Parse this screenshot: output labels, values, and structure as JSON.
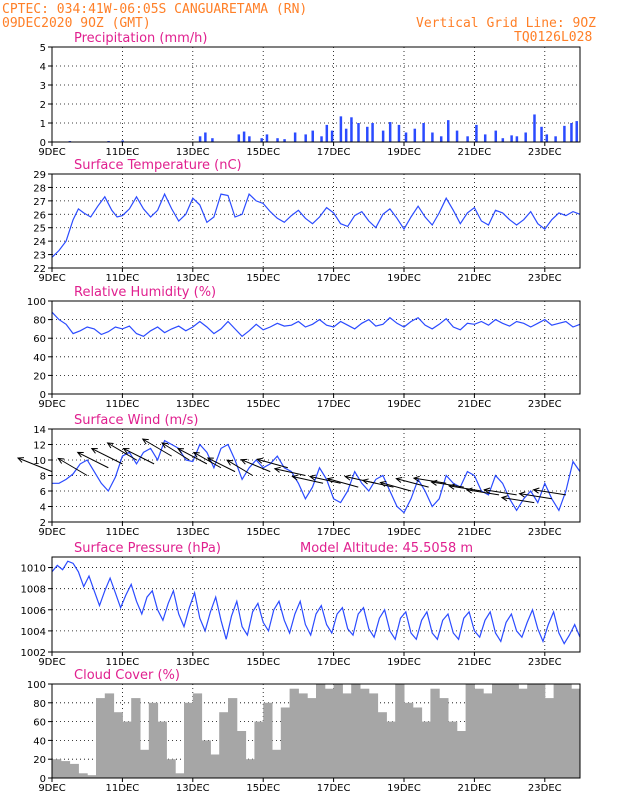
{
  "header": {
    "line1_left": "CPTEC:   034:41W-06:05S   CANGUARETAMA (RN)",
    "line2_left": "09DEC2020 9OZ (GMT)",
    "line2_right": "Vertical Grid Line: 9OZ",
    "line3_right": "TQ0126L028"
  },
  "x_axis": {
    "ticks": [
      "9DEC",
      "11DEC",
      "13DEC",
      "15DEC",
      "17DEC",
      "19DEC",
      "21DEC",
      "23DEC"
    ],
    "tick_days": [
      0,
      2,
      4,
      6,
      8,
      10,
      12,
      14
    ],
    "range_days": [
      0,
      15
    ]
  },
  "colors": {
    "series": "#2b4bff",
    "bars": "#2b4bff",
    "cloud": "#a6a6a6",
    "header": "#ff7f27",
    "title": "#e0208f"
  },
  "chart_data": [
    {
      "type": "bar",
      "title": "Precipitation (mm/h)",
      "ylim": [
        0,
        5
      ],
      "yticks": [
        0,
        1,
        2,
        3,
        4,
        5
      ],
      "x": [
        0.5,
        1.6,
        2.0,
        4.2,
        4.35,
        4.55,
        5.3,
        5.45,
        5.6,
        5.95,
        6.1,
        6.4,
        6.6,
        6.9,
        7.2,
        7.4,
        7.65,
        7.8,
        7.95,
        8.2,
        8.35,
        8.5,
        8.7,
        8.95,
        9.1,
        9.4,
        9.6,
        9.85,
        10.05,
        10.3,
        10.55,
        10.8,
        11.05,
        11.25,
        11.5,
        11.8,
        12.05,
        12.3,
        12.6,
        12.8,
        13.05,
        13.2,
        13.45,
        13.7,
        13.9,
        14.05,
        14.3,
        14.55,
        14.75,
        14.9
      ],
      "values": [
        0.05,
        0.05,
        0.08,
        0.3,
        0.5,
        0.2,
        0.4,
        0.55,
        0.3,
        0.2,
        0.4,
        0.2,
        0.15,
        0.5,
        0.4,
        0.6,
        0.3,
        0.9,
        0.6,
        1.35,
        0.7,
        1.3,
        1.0,
        0.8,
        1.0,
        0.6,
        1.05,
        0.9,
        0.5,
        0.7,
        1.0,
        0.5,
        0.3,
        1.15,
        0.6,
        0.3,
        0.9,
        0.4,
        0.6,
        0.2,
        0.35,
        0.3,
        0.5,
        1.45,
        0.8,
        0.4,
        0.3,
        0.85,
        1.0,
        1.1
      ]
    },
    {
      "type": "line",
      "title": "Surface Temperature (nC)",
      "ylim": [
        22,
        29
      ],
      "yticks": [
        22,
        23,
        24,
        25,
        26,
        27,
        28,
        29
      ],
      "x": [
        0.0,
        0.2,
        0.4,
        0.6,
        0.75,
        0.9,
        1.1,
        1.3,
        1.5,
        1.7,
        1.85,
        2.0,
        2.2,
        2.4,
        2.6,
        2.8,
        3.0,
        3.2,
        3.4,
        3.6,
        3.8,
        4.0,
        4.2,
        4.4,
        4.6,
        4.8,
        5.0,
        5.2,
        5.4,
        5.6,
        5.8,
        6.0,
        6.2,
        6.4,
        6.6,
        6.8,
        7.0,
        7.2,
        7.4,
        7.6,
        7.8,
        8.0,
        8.2,
        8.4,
        8.6,
        8.8,
        9.0,
        9.2,
        9.4,
        9.6,
        9.8,
        10.0,
        10.2,
        10.4,
        10.6,
        10.8,
        11.0,
        11.2,
        11.4,
        11.6,
        11.8,
        12.0,
        12.2,
        12.4,
        12.6,
        12.8,
        13.0,
        13.2,
        13.4,
        13.6,
        13.8,
        14.0,
        14.2,
        14.4,
        14.6,
        14.8,
        15.0
      ],
      "values": [
        22.8,
        23.3,
        24.0,
        25.6,
        26.4,
        26.1,
        25.8,
        26.6,
        27.3,
        26.3,
        25.8,
        25.9,
        26.4,
        27.3,
        26.4,
        25.8,
        26.3,
        27.5,
        26.4,
        25.5,
        26.0,
        27.2,
        26.7,
        25.4,
        25.8,
        27.5,
        27.4,
        25.8,
        26.0,
        27.5,
        27.0,
        26.8,
        26.2,
        25.7,
        25.4,
        25.9,
        26.3,
        25.7,
        25.3,
        25.8,
        26.5,
        26.1,
        25.3,
        25.1,
        25.9,
        26.2,
        25.5,
        25.0,
        26.0,
        26.4,
        25.7,
        24.9,
        25.8,
        26.6,
        25.8,
        25.2,
        26.1,
        27.2,
        26.3,
        25.3,
        26.1,
        26.5,
        25.5,
        25.2,
        26.3,
        26.1,
        25.6,
        25.2,
        25.6,
        26.2,
        25.3,
        24.9,
        25.6,
        26.1,
        25.9,
        26.2,
        26.0
      ]
    },
    {
      "type": "line",
      "title": "Relative Humidity (%)",
      "ylim": [
        0,
        100
      ],
      "yticks": [
        0,
        20,
        40,
        60,
        80,
        100
      ],
      "x": [
        0.0,
        0.2,
        0.4,
        0.6,
        0.8,
        1.0,
        1.2,
        1.4,
        1.6,
        1.8,
        2.0,
        2.2,
        2.4,
        2.6,
        2.8,
        3.0,
        3.2,
        3.4,
        3.6,
        3.8,
        4.0,
        4.2,
        4.4,
        4.6,
        4.8,
        5.0,
        5.2,
        5.4,
        5.6,
        5.8,
        6.0,
        6.2,
        6.4,
        6.6,
        6.8,
        7.0,
        7.2,
        7.4,
        7.6,
        7.8,
        8.0,
        8.2,
        8.4,
        8.6,
        8.8,
        9.0,
        9.2,
        9.4,
        9.6,
        9.8,
        10.0,
        10.2,
        10.4,
        10.6,
        10.8,
        11.0,
        11.2,
        11.4,
        11.6,
        11.8,
        12.0,
        12.2,
        12.4,
        12.6,
        12.8,
        13.0,
        13.2,
        13.4,
        13.6,
        13.8,
        14.0,
        14.2,
        14.4,
        14.6,
        14.8,
        15.0
      ],
      "values": [
        88,
        80,
        75,
        65,
        68,
        72,
        70,
        64,
        67,
        72,
        70,
        73,
        65,
        62,
        68,
        72,
        66,
        70,
        73,
        68,
        72,
        78,
        72,
        65,
        70,
        78,
        70,
        62,
        68,
        75,
        69,
        72,
        76,
        73,
        74,
        78,
        72,
        75,
        80,
        74,
        72,
        78,
        74,
        70,
        76,
        80,
        73,
        75,
        82,
        76,
        72,
        78,
        82,
        74,
        70,
        75,
        81,
        72,
        69,
        76,
        75,
        78,
        74,
        80,
        76,
        73,
        78,
        76,
        72,
        76,
        80,
        74,
        76,
        78,
        72,
        75
      ]
    },
    {
      "type": "line",
      "title": "Surface Wind (m/s)",
      "ylim": [
        2,
        14
      ],
      "yticks": [
        2,
        4,
        6,
        8,
        10,
        12,
        14
      ],
      "x": [
        0.0,
        0.2,
        0.4,
        0.6,
        0.8,
        1.0,
        1.2,
        1.4,
        1.6,
        1.8,
        2.0,
        2.2,
        2.4,
        2.6,
        2.8,
        3.0,
        3.2,
        3.4,
        3.6,
        3.8,
        4.0,
        4.2,
        4.4,
        4.6,
        4.8,
        5.0,
        5.2,
        5.4,
        5.6,
        5.8,
        6.0,
        6.2,
        6.4,
        6.6,
        6.8,
        7.0,
        7.2,
        7.4,
        7.6,
        7.8,
        8.0,
        8.2,
        8.4,
        8.6,
        8.8,
        9.0,
        9.2,
        9.4,
        9.6,
        9.8,
        10.0,
        10.2,
        10.4,
        10.6,
        10.8,
        11.0,
        11.2,
        11.4,
        11.6,
        11.8,
        12.0,
        12.2,
        12.4,
        12.6,
        12.8,
        13.0,
        13.2,
        13.4,
        13.6,
        13.8,
        14.0,
        14.2,
        14.4,
        14.6,
        14.8,
        15.0
      ],
      "values": [
        7.0,
        7.0,
        7.5,
        8.2,
        9.5,
        10.0,
        8.5,
        7.0,
        6.0,
        7.8,
        10.5,
        11.0,
        9.5,
        11.0,
        11.5,
        10.0,
        12.5,
        12.0,
        11.5,
        10.0,
        9.8,
        12.0,
        11.0,
        9.0,
        11.5,
        12.0,
        10.0,
        7.5,
        9.0,
        10.0,
        9.0,
        9.5,
        10.5,
        9.0,
        8.5,
        7.0,
        5.0,
        6.5,
        9.0,
        7.5,
        5.0,
        4.5,
        6.0,
        8.5,
        7.0,
        6.0,
        7.5,
        8.0,
        6.0,
        4.0,
        3.2,
        5.0,
        7.5,
        6.0,
        4.0,
        5.0,
        8.0,
        7.0,
        6.5,
        8.5,
        8.0,
        6.0,
        5.5,
        8.0,
        7.0,
        5.0,
        3.5,
        5.0,
        6.0,
        4.5,
        7.0,
        5.0,
        3.5,
        6.0,
        9.8,
        8.5
      ],
      "arrows": {
        "x": [
          0.0,
          1.0,
          1.6,
          2.0,
          2.4,
          2.9,
          3.4,
          3.9,
          4.4,
          4.8,
          5.2,
          5.7,
          6.2,
          6.7,
          7.2,
          7.7,
          8.2,
          8.7,
          9.2,
          9.7,
          10.2,
          10.7,
          11.2,
          11.7,
          12.2,
          12.7,
          13.2,
          13.7,
          14.2,
          14.6
        ],
        "u": [
          -1.0,
          -0.85,
          -0.9,
          -0.9,
          -0.85,
          -0.9,
          -0.85,
          -0.8,
          -0.85,
          -0.8,
          -0.8,
          -0.75,
          -0.85,
          -0.9,
          -0.9,
          -0.9,
          -0.9,
          -0.9,
          -0.9,
          -0.9,
          -0.9,
          -0.95,
          -0.95,
          -0.95,
          -0.95,
          -0.95,
          -0.95,
          -0.95,
          -0.95,
          -0.95
        ],
        "v": [
          0.4,
          0.5,
          0.45,
          0.45,
          0.5,
          0.45,
          0.5,
          0.5,
          0.45,
          0.45,
          0.4,
          0.45,
          0.35,
          0.25,
          0.2,
          0.2,
          0.2,
          0.25,
          0.2,
          0.2,
          0.25,
          0.25,
          0.15,
          0.15,
          0.15,
          0.15,
          0.15,
          0.15,
          0.15,
          0.15
        ],
        "speed": [
          8.5,
          8.0,
          9.0,
          9.5,
          10.0,
          9.5,
          10.5,
          10.0,
          9.5,
          9.0,
          8.5,
          8.0,
          8.5,
          9.0,
          8.0,
          7.0,
          7.0,
          6.5,
          7.0,
          6.5,
          6.0,
          6.5,
          7.0,
          6.5,
          6.0,
          5.5,
          5.5,
          4.5,
          5.0,
          5.5
        ]
      }
    },
    {
      "type": "line",
      "title": "Surface Pressure (hPa)",
      "annotation": "Model Altitude: 45.5058  m",
      "ylim": [
        1002,
        1011
      ],
      "yticks": [
        1002,
        1004,
        1006,
        1008,
        1010
      ],
      "x": [
        0.0,
        0.15,
        0.3,
        0.45,
        0.6,
        0.75,
        0.9,
        1.05,
        1.2,
        1.35,
        1.5,
        1.65,
        1.8,
        1.95,
        2.1,
        2.25,
        2.4,
        2.55,
        2.7,
        2.85,
        3.0,
        3.15,
        3.3,
        3.45,
        3.6,
        3.75,
        3.9,
        4.05,
        4.2,
        4.35,
        4.5,
        4.65,
        4.8,
        4.95,
        5.1,
        5.25,
        5.4,
        5.55,
        5.7,
        5.85,
        6.0,
        6.15,
        6.3,
        6.45,
        6.6,
        6.75,
        6.9,
        7.05,
        7.2,
        7.35,
        7.5,
        7.65,
        7.8,
        7.95,
        8.1,
        8.25,
        8.4,
        8.55,
        8.7,
        8.85,
        9.0,
        9.15,
        9.3,
        9.45,
        9.6,
        9.75,
        9.9,
        10.05,
        10.2,
        10.35,
        10.5,
        10.65,
        10.8,
        10.95,
        11.1,
        11.25,
        11.4,
        11.55,
        11.7,
        11.85,
        12.0,
        12.15,
        12.3,
        12.45,
        12.6,
        12.75,
        12.9,
        13.05,
        13.2,
        13.35,
        13.5,
        13.65,
        13.8,
        13.95,
        14.1,
        14.25,
        14.4,
        14.55,
        14.7,
        14.85,
        15.0
      ],
      "values": [
        1009.6,
        1010.2,
        1009.8,
        1010.6,
        1010.4,
        1009.6,
        1008.2,
        1009.2,
        1007.8,
        1006.4,
        1007.8,
        1009.0,
        1007.6,
        1006.2,
        1007.4,
        1008.4,
        1006.8,
        1005.6,
        1007.2,
        1007.8,
        1006.0,
        1005.0,
        1006.6,
        1007.8,
        1005.6,
        1004.4,
        1006.2,
        1007.6,
        1005.2,
        1004.0,
        1005.8,
        1007.2,
        1005.0,
        1003.2,
        1005.4,
        1006.8,
        1004.4,
        1003.6,
        1005.8,
        1006.6,
        1004.8,
        1004.0,
        1006.0,
        1006.8,
        1005.0,
        1003.8,
        1005.6,
        1006.8,
        1004.6,
        1003.6,
        1005.6,
        1006.4,
        1004.6,
        1003.8,
        1005.6,
        1006.2,
        1004.2,
        1003.6,
        1005.6,
        1006.2,
        1004.2,
        1003.4,
        1005.2,
        1006.0,
        1004.0,
        1003.2,
        1005.2,
        1005.8,
        1003.8,
        1003.2,
        1005.0,
        1005.8,
        1003.8,
        1003.2,
        1005.0,
        1005.6,
        1003.8,
        1003.2,
        1005.2,
        1005.8,
        1004.0,
        1003.4,
        1005.0,
        1005.8,
        1003.8,
        1003.0,
        1004.8,
        1005.6,
        1004.0,
        1003.4,
        1004.8,
        1006.0,
        1004.2,
        1003.0,
        1004.6,
        1005.8,
        1003.8,
        1002.8,
        1003.6,
        1004.6,
        1003.4
      ]
    },
    {
      "type": "bar",
      "title": "Cloud Cover (%)",
      "ylim": [
        0,
        100
      ],
      "yticks": [
        0,
        20,
        40,
        60,
        80,
        100
      ],
      "x": [
        0.0,
        0.25,
        0.5,
        0.75,
        1.0,
        1.25,
        1.5,
        1.75,
        2.0,
        2.25,
        2.5,
        2.75,
        3.0,
        3.25,
        3.5,
        3.75,
        4.0,
        4.25,
        4.5,
        4.75,
        5.0,
        5.25,
        5.5,
        5.75,
        6.0,
        6.25,
        6.5,
        6.75,
        7.0,
        7.25,
        7.5,
        7.75,
        8.0,
        8.25,
        8.5,
        8.75,
        9.0,
        9.25,
        9.5,
        9.75,
        10.0,
        10.25,
        10.5,
        10.75,
        11.0,
        11.25,
        11.5,
        11.75,
        12.0,
        12.25,
        12.5,
        12.75,
        13.0,
        13.25,
        13.5,
        13.75,
        14.0,
        14.25,
        14.5,
        14.75
      ],
      "values": [
        20,
        18,
        15,
        5,
        3,
        85,
        90,
        70,
        60,
        85,
        30,
        80,
        60,
        20,
        5,
        80,
        90,
        40,
        25,
        70,
        85,
        50,
        20,
        60,
        80,
        30,
        75,
        95,
        90,
        85,
        100,
        95,
        100,
        90,
        100,
        95,
        90,
        70,
        60,
        100,
        80,
        75,
        60,
        95,
        85,
        60,
        50,
        100,
        95,
        90,
        100,
        100,
        100,
        95,
        100,
        100,
        85,
        100,
        100,
        95
      ]
    }
  ]
}
